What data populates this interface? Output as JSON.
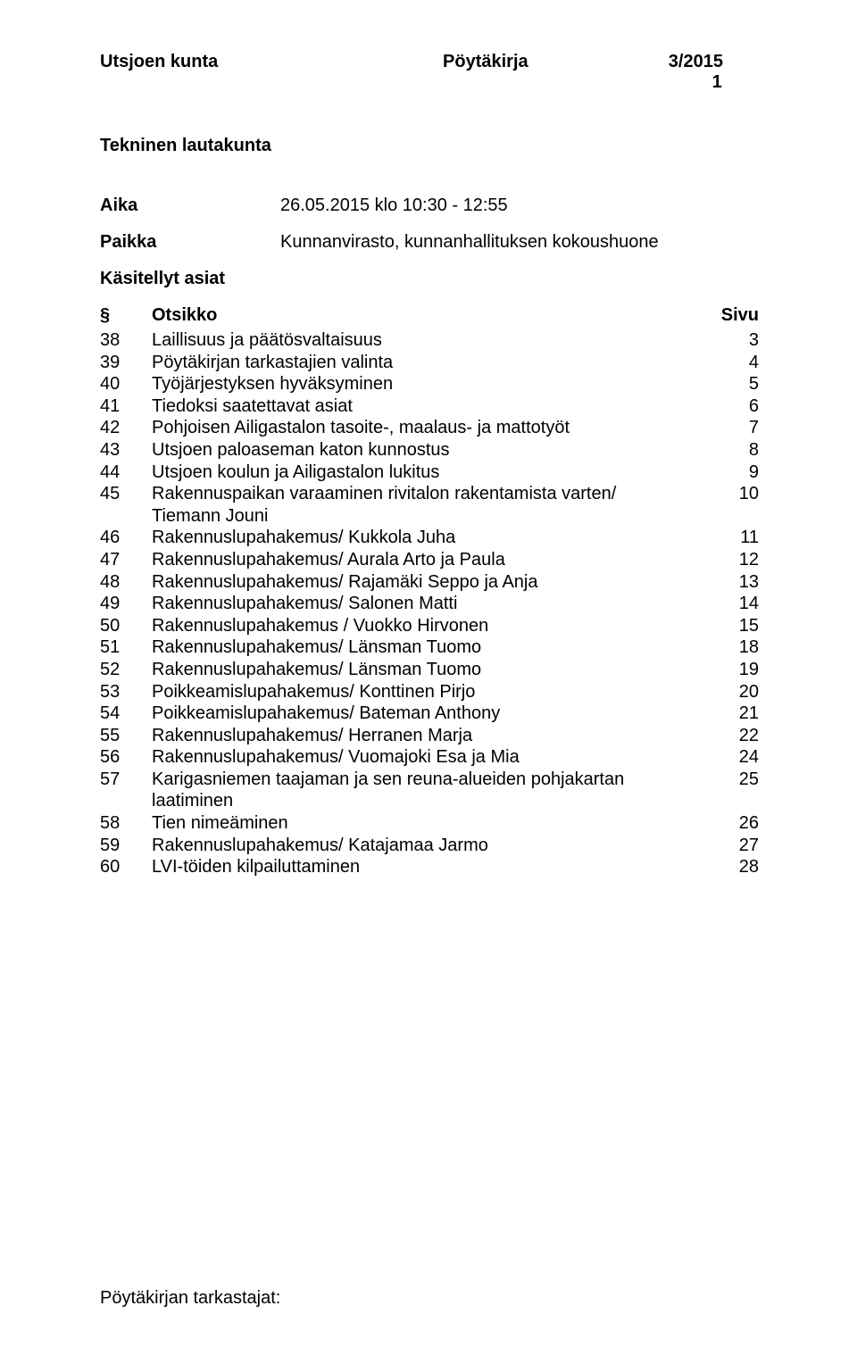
{
  "header": {
    "org": "Utsjoen kunta",
    "doc_type": "Pöytäkirja",
    "doc_number": "3/2015",
    "page_no": "1"
  },
  "committee": "Tekninen lautakunta",
  "meta": {
    "aika_label": "Aika",
    "aika_value": "26.05.2015 klo 10:30 - 12:55",
    "paikka_label": "Paikka",
    "paikka_value": "Kunnanvirasto, kunnanhallituksen kokoushuone"
  },
  "section_title": "Käsitellyt asiat",
  "table_header": {
    "sym": "§",
    "title": "Otsikko",
    "page": "Sivu"
  },
  "items": [
    {
      "num": "38",
      "title": "Laillisuus ja päätösvaltaisuus",
      "page": "3"
    },
    {
      "num": "39",
      "title": "Pöytäkirjan tarkastajien valinta",
      "page": "4"
    },
    {
      "num": "40",
      "title": "Työjärjestyksen hyväksyminen",
      "page": "5"
    },
    {
      "num": "41",
      "title": "Tiedoksi saatettavat asiat",
      "page": "6"
    },
    {
      "num": "42",
      "title": "Pohjoisen Ailigastalon tasoite-, maalaus- ja mattotyöt",
      "page": "7"
    },
    {
      "num": "43",
      "title": "Utsjoen paloaseman katon kunnostus",
      "page": "8"
    },
    {
      "num": "44",
      "title": "Utsjoen koulun ja Ailigastalon lukitus",
      "page": "9"
    },
    {
      "num": "45",
      "title": "Rakennuspaikan varaaminen rivitalon rakentamista varten/ Tiemann Jouni",
      "page": "10"
    },
    {
      "num": "46",
      "title": "Rakennuslupahakemus/ Kukkola Juha",
      "page": "11"
    },
    {
      "num": "47",
      "title": "Rakennuslupahakemus/ Aurala Arto ja Paula",
      "page": "12"
    },
    {
      "num": "48",
      "title": "Rakennuslupahakemus/ Rajamäki Seppo ja Anja",
      "page": "13"
    },
    {
      "num": "49",
      "title": "Rakennuslupahakemus/ Salonen Matti",
      "page": "14"
    },
    {
      "num": "50",
      "title": "Rakennuslupahakemus / Vuokko Hirvonen",
      "page": "15"
    },
    {
      "num": "51",
      "title": "Rakennuslupahakemus/ Länsman Tuomo",
      "page": "18"
    },
    {
      "num": "52",
      "title": "Rakennuslupahakemus/ Länsman Tuomo",
      "page": "19"
    },
    {
      "num": "53",
      "title": "Poikkeamislupahakemus/ Konttinen Pirjo",
      "page": "20"
    },
    {
      "num": "54",
      "title": "Poikkeamislupahakemus/ Bateman Anthony",
      "page": "21"
    },
    {
      "num": "55",
      "title": "Rakennuslupahakemus/ Herranen Marja",
      "page": "22"
    },
    {
      "num": "56",
      "title": "Rakennuslupahakemus/ Vuomajoki Esa ja Mia",
      "page": "24"
    },
    {
      "num": "57",
      "title": "Karigasniemen taajaman ja sen reuna-alueiden pohjakartan laatiminen",
      "page": "25"
    },
    {
      "num": "58",
      "title": "Tien nimeäminen",
      "page": "26"
    },
    {
      "num": "59",
      "title": "Rakennuslupahakemus/ Katajamaa Jarmo",
      "page": "27"
    },
    {
      "num": "60",
      "title": "LVI-töiden kilpailuttaminen",
      "page": "28"
    }
  ],
  "footer": "Pöytäkirjan tarkastajat:"
}
